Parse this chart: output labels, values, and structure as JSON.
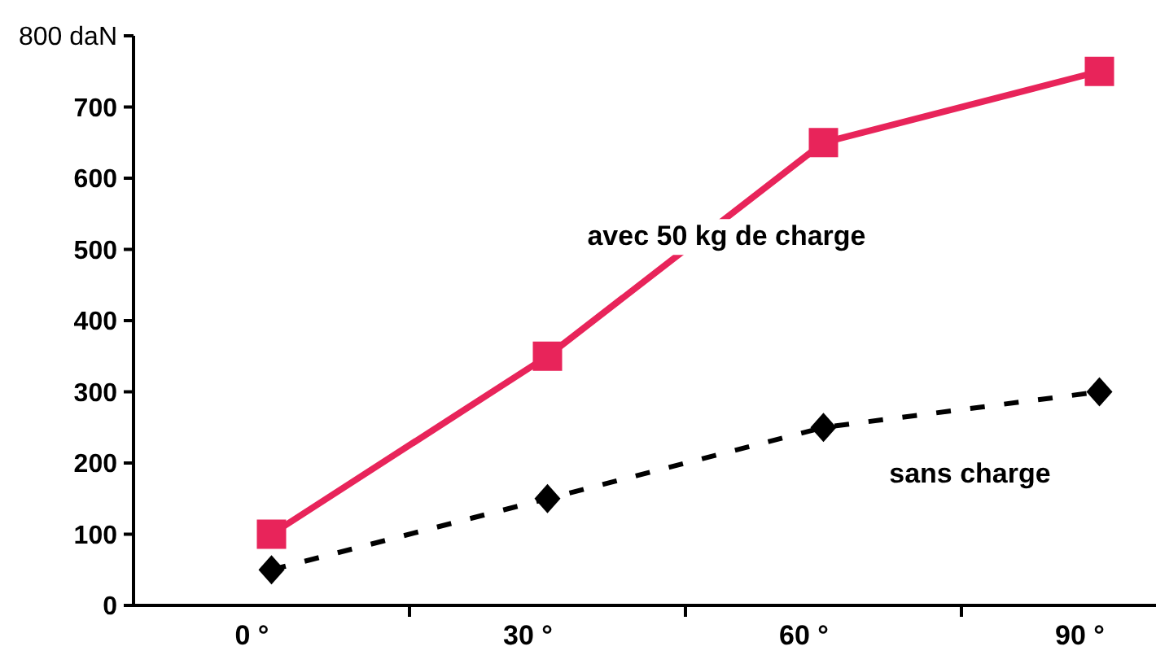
{
  "chart_data": {
    "type": "line",
    "categories": [
      "0 °",
      "30 °",
      "60 °",
      "90 °"
    ],
    "ylim": [
      0,
      800
    ],
    "yticks": [
      0,
      100,
      200,
      300,
      400,
      500,
      600,
      700,
      {
        "value": 800,
        "label": "800 daN"
      }
    ],
    "grid": false,
    "series": [
      {
        "name": "avec 50 kg de charge",
        "color": "#e8245a",
        "values": [
          100,
          350,
          650,
          750
        ],
        "marker": "square",
        "line_style": "solid"
      },
      {
        "name": "sans charge",
        "color": "#000000",
        "values": [
          50,
          150,
          250,
          300
        ],
        "marker": "diamond",
        "line_style": "dashed"
      }
    ]
  }
}
